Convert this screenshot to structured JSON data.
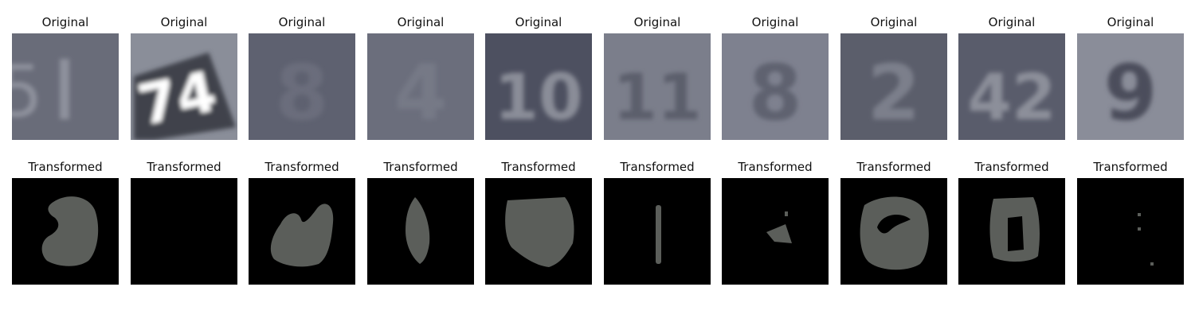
{
  "rows": [
    {
      "label": "Original",
      "tiles": [
        {
          "bg": "#696c79",
          "fg": "#8e919c",
          "glyph": "1",
          "partial": "left-5",
          "icon": "digit-one-icon"
        },
        {
          "bg": "#8a8e99",
          "fg": "#ffffff",
          "glyph": "74",
          "dark": "#3f424c",
          "icon": "digits-74-icon"
        },
        {
          "bg": "#5e6170",
          "fg": "#6a6d7b",
          "glyph": "8",
          "icon": "blurred-digit-icon"
        },
        {
          "bg": "#6b6e7c",
          "fg": "#767986",
          "glyph": "4",
          "icon": "blurred-digit-icon"
        },
        {
          "bg": "#4d5060",
          "fg": "#8a8d98",
          "glyph": "10",
          "icon": "digits-10-icon"
        },
        {
          "bg": "#7b7e8b",
          "fg": "#5c5f6c",
          "glyph": "11",
          "icon": "digits-11-icon"
        },
        {
          "bg": "#7e818f",
          "fg": "#5f6270",
          "glyph": "8",
          "icon": "digit-eight-icon"
        },
        {
          "bg": "#5b5e6b",
          "fg": "#7c7f8b",
          "glyph": "2",
          "icon": "digit-two-icon"
        },
        {
          "bg": "#595c6b",
          "fg": "#8c8f9a",
          "glyph": "42",
          "icon": "digits-42-icon"
        },
        {
          "bg": "#8a8d99",
          "fg": "#4b4e5b",
          "glyph": "9",
          "icon": "digit-nine-icon"
        }
      ]
    },
    {
      "label": "Transformed",
      "tiles": [
        {
          "bg": "#000000",
          "fg": "#5b5e5a",
          "shape": "blob-c",
          "icon": "transformed-blob-icon"
        },
        {
          "bg": "#000000",
          "fg": "#000000",
          "shape": "empty",
          "icon": "empty-tile-icon"
        },
        {
          "bg": "#000000",
          "fg": "#5b5e5a",
          "shape": "blob-c2",
          "icon": "transformed-blob-icon"
        },
        {
          "bg": "#000000",
          "fg": "#5b5e5a",
          "shape": "spindle",
          "icon": "transformed-blob-icon"
        },
        {
          "bg": "#000000",
          "fg": "#5b5e5a",
          "shape": "square-blob",
          "icon": "transformed-blob-icon"
        },
        {
          "bg": "#000000",
          "fg": "#5b5e5a",
          "shape": "bar",
          "icon": "transformed-bar-icon"
        },
        {
          "bg": "#000000",
          "fg": "#5b5e5a",
          "shape": "triangle",
          "icon": "transformed-triangle-icon"
        },
        {
          "bg": "#000000",
          "fg": "#5b5e5a",
          "shape": "ring",
          "icon": "transformed-ring-icon"
        },
        {
          "bg": "#000000",
          "fg": "#5b5e5a",
          "shape": "frame",
          "icon": "transformed-frame-icon"
        },
        {
          "bg": "#000000",
          "fg": "#5b5e5a",
          "shape": "dots",
          "icon": "transformed-dots-icon"
        }
      ]
    }
  ]
}
